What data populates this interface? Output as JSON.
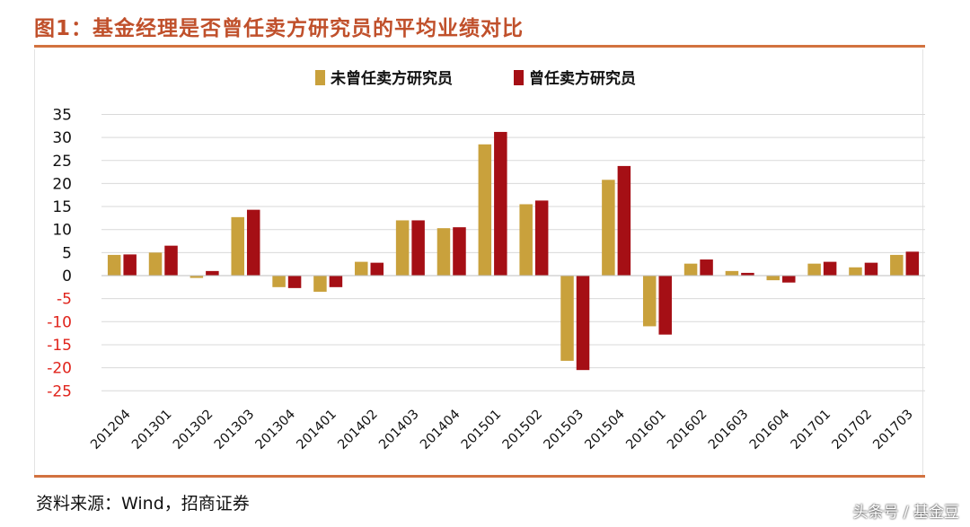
{
  "header": {
    "title": "图1：基金经理是否曾任卖方研究员的平均业绩对比"
  },
  "footer": {
    "source": "资料来源：Wind，招商证券",
    "watermark": "头条号 / 基金豆"
  },
  "colors": {
    "accent": "#d2723f",
    "title": "#c0502b",
    "negative_tick": "#e0231b"
  },
  "chart_data": {
    "type": "bar",
    "title": "图1：基金经理是否曾任卖方研究员的平均业绩对比",
    "xlabel": "",
    "ylabel": "",
    "ylim": [
      -25,
      35
    ],
    "yticks": [
      35,
      30,
      25,
      20,
      15,
      10,
      5,
      0,
      -5,
      -10,
      -15,
      -20,
      -25
    ],
    "grid": true,
    "legend": "top-center",
    "categories": [
      "201204",
      "201301",
      "201302",
      "201303",
      "201304",
      "201401",
      "201402",
      "201403",
      "201404",
      "201501",
      "201502",
      "201503",
      "201504",
      "201601",
      "201602",
      "201603",
      "201604",
      "201701",
      "201702",
      "201703"
    ],
    "series": [
      {
        "name": "未曾任卖方研究员",
        "color": "#c9a13c",
        "values": [
          4.5,
          5.0,
          -0.5,
          12.7,
          -2.5,
          -3.5,
          3.0,
          12.0,
          10.3,
          28.5,
          15.5,
          -18.5,
          20.8,
          -11.0,
          2.6,
          1.0,
          -1.0,
          2.6,
          1.8,
          4.5
        ]
      },
      {
        "name": "曾任卖方研究员",
        "color": "#a50f15",
        "values": [
          4.6,
          6.5,
          1.0,
          14.3,
          -2.7,
          -2.5,
          2.8,
          12.0,
          10.5,
          31.2,
          16.3,
          -20.5,
          23.8,
          -12.8,
          3.5,
          0.6,
          -1.5,
          3.0,
          2.8,
          5.2
        ]
      }
    ]
  }
}
